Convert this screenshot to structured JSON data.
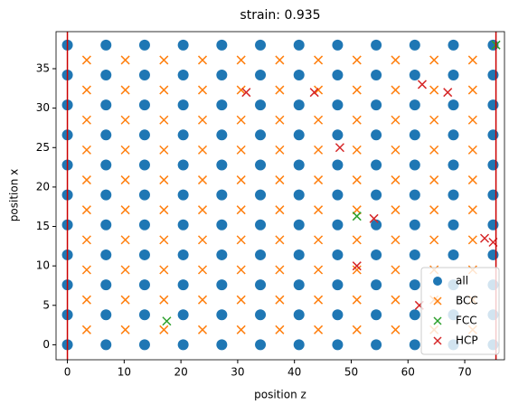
{
  "chart_data": {
    "type": "scatter",
    "title": "strain: 0.935",
    "x_label": "position z",
    "y_label": "position x",
    "xlim": [
      -2,
      77
    ],
    "ylim": [
      -1.9,
      39.7
    ],
    "xticks": [
      0,
      10,
      20,
      30,
      40,
      50,
      60,
      70
    ],
    "yticks": [
      0,
      5,
      10,
      15,
      20,
      25,
      30,
      35
    ],
    "vlines": [
      0,
      75.5
    ],
    "vline_color": "#cc0000",
    "legend": "lower right",
    "series": [
      {
        "name": "all",
        "color": "#1f77b4",
        "marker": "o",
        "x": [
          0,
          6.8,
          13.6,
          20.4,
          27.2,
          34,
          40.8,
          47.6,
          54.4,
          61.2,
          68,
          75,
          0,
          6.8,
          13.6,
          20.4,
          27.2,
          34,
          40.8,
          47.6,
          54.4,
          61.2,
          68,
          75,
          0,
          6.8,
          13.6,
          20.4,
          27.2,
          34,
          40.8,
          47.6,
          54.4,
          61.2,
          68,
          75,
          0,
          6.8,
          13.6,
          20.4,
          27.2,
          34,
          40.8,
          47.6,
          54.4,
          61.2,
          68,
          75,
          0,
          6.8,
          13.6,
          20.4,
          27.2,
          34,
          40.8,
          47.6,
          54.4,
          61.2,
          68,
          75,
          0,
          6.8,
          13.6,
          20.4,
          27.2,
          34,
          40.8,
          47.6,
          54.4,
          61.2,
          68,
          75,
          0,
          6.8,
          13.6,
          20.4,
          27.2,
          34,
          40.8,
          47.6,
          54.4,
          61.2,
          68,
          75,
          0,
          6.8,
          13.6,
          20.4,
          27.2,
          34,
          40.8,
          47.6,
          54.4,
          61.2,
          68,
          75,
          0,
          6.8,
          13.6,
          20.4,
          27.2,
          34,
          40.8,
          47.6,
          54.4,
          61.2,
          68,
          75,
          0,
          6.8,
          13.6,
          20.4,
          27.2,
          34,
          40.8,
          47.6,
          54.4,
          61.2,
          68,
          75,
          0,
          6.8,
          13.6,
          20.4,
          27.2,
          34,
          40.8,
          47.6,
          54.4,
          61.2,
          68,
          75
        ],
        "y": [
          0,
          0,
          0,
          0,
          0,
          0,
          0,
          0,
          0,
          0,
          0,
          0,
          3.8,
          3.8,
          3.8,
          3.8,
          3.8,
          3.8,
          3.8,
          3.8,
          3.8,
          3.8,
          3.8,
          3.8,
          7.6,
          7.6,
          7.6,
          7.6,
          7.6,
          7.6,
          7.6,
          7.6,
          7.6,
          7.6,
          7.6,
          7.6,
          11.4,
          11.4,
          11.4,
          11.4,
          11.4,
          11.4,
          11.4,
          11.4,
          11.4,
          11.4,
          11.4,
          11.4,
          15.2,
          15.2,
          15.2,
          15.2,
          15.2,
          15.2,
          15.2,
          15.2,
          15.2,
          15.2,
          15.2,
          15.2,
          19,
          19,
          19,
          19,
          19,
          19,
          19,
          19,
          19,
          19,
          19,
          19,
          22.8,
          22.8,
          22.8,
          22.8,
          22.8,
          22.8,
          22.8,
          22.8,
          22.8,
          22.8,
          22.8,
          22.8,
          26.6,
          26.6,
          26.6,
          26.6,
          26.6,
          26.6,
          26.6,
          26.6,
          26.6,
          26.6,
          26.6,
          26.6,
          30.4,
          30.4,
          30.4,
          30.4,
          30.4,
          30.4,
          30.4,
          30.4,
          30.4,
          30.4,
          30.4,
          30.4,
          34.2,
          34.2,
          34.2,
          34.2,
          34.2,
          34.2,
          34.2,
          34.2,
          34.2,
          34.2,
          34.2,
          34.2,
          38,
          38,
          38,
          38,
          38,
          38,
          38,
          38,
          38,
          38,
          38,
          38
        ]
      },
      {
        "name": "BCC",
        "color": "#ff7f0e",
        "marker": "x",
        "x": [
          3.4,
          10.2,
          17,
          23.8,
          30.6,
          37.4,
          44.2,
          51,
          57.8,
          64.6,
          71.4,
          3.4,
          10.2,
          17,
          23.8,
          30.6,
          37.4,
          44.2,
          51,
          57.8,
          64.6,
          71.4,
          3.4,
          10.2,
          17,
          23.8,
          30.6,
          37.4,
          44.2,
          51,
          57.8,
          64.6,
          71.4,
          3.4,
          10.2,
          17,
          23.8,
          30.6,
          37.4,
          44.2,
          51,
          57.8,
          64.6,
          71.4,
          3.4,
          10.2,
          17,
          23.8,
          30.6,
          37.4,
          44.2,
          51,
          57.8,
          64.6,
          71.4,
          3.4,
          10.2,
          17,
          23.8,
          30.6,
          37.4,
          44.2,
          51,
          57.8,
          64.6,
          71.4,
          3.4,
          10.2,
          17,
          23.8,
          30.6,
          37.4,
          44.2,
          51,
          57.8,
          64.6,
          71.4,
          3.4,
          10.2,
          17,
          23.8,
          30.6,
          37.4,
          44.2,
          51,
          57.8,
          64.6,
          71.4,
          3.4,
          10.2,
          17,
          23.8,
          30.6,
          37.4,
          44.2,
          51,
          57.8,
          64.6,
          71.4,
          3.4,
          10.2,
          17,
          23.8,
          30.6,
          37.4,
          44.2,
          51,
          57.8,
          64.6,
          71.4
        ],
        "y": [
          1.9,
          1.9,
          1.9,
          1.9,
          1.9,
          1.9,
          1.9,
          1.9,
          1.9,
          1.9,
          1.9,
          5.7,
          5.7,
          5.7,
          5.7,
          5.7,
          5.7,
          5.7,
          5.7,
          5.7,
          5.7,
          5.7,
          9.5,
          9.5,
          9.5,
          9.5,
          9.5,
          9.5,
          9.5,
          9.5,
          9.5,
          9.5,
          9.5,
          13.3,
          13.3,
          13.3,
          13.3,
          13.3,
          13.3,
          13.3,
          13.3,
          13.3,
          13.3,
          13.3,
          17.1,
          17.1,
          17.1,
          17.1,
          17.1,
          17.1,
          17.1,
          17.1,
          17.1,
          17.1,
          17.1,
          20.9,
          20.9,
          20.9,
          20.9,
          20.9,
          20.9,
          20.9,
          20.9,
          20.9,
          20.9,
          20.9,
          24.7,
          24.7,
          24.7,
          24.7,
          24.7,
          24.7,
          24.7,
          24.7,
          24.7,
          24.7,
          24.7,
          28.5,
          28.5,
          28.5,
          28.5,
          28.5,
          28.5,
          28.5,
          28.5,
          28.5,
          28.5,
          28.5,
          32.3,
          32.3,
          32.3,
          32.3,
          32.3,
          32.3,
          32.3,
          32.3,
          32.3,
          32.3,
          32.3,
          36.1,
          36.1,
          36.1,
          36.1,
          36.1,
          36.1,
          36.1,
          36.1,
          36.1,
          36.1,
          36.1
        ]
      },
      {
        "name": "FCC",
        "color": "#2ca02c",
        "marker": "x",
        "x": [
          17.5,
          51,
          75.5
        ],
        "y": [
          3,
          16.3,
          38
        ]
      },
      {
        "name": "HCP",
        "color": "#d62728",
        "marker": "x",
        "x": [
          31.5,
          43.5,
          48,
          62.5,
          67,
          54,
          51,
          62,
          73.5,
          75
        ],
        "y": [
          32,
          32,
          25,
          33,
          32,
          16,
          10,
          5,
          13.5,
          13
        ]
      }
    ]
  }
}
